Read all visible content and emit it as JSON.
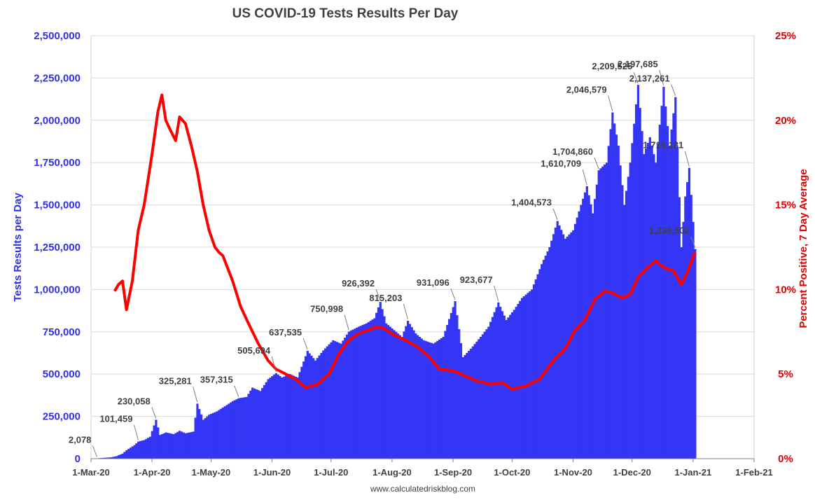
{
  "chart_data": {
    "type": "bar",
    "title": "US COVID-19 Tests Results Per Day",
    "ylabel": "Tests Results per Day",
    "y2label": "Percent Positive, 7 Day Average",
    "credit": "www.calculatedriskblog.com",
    "ylim": [
      0,
      2500000
    ],
    "y2lim": [
      0,
      25
    ],
    "xlim": [
      "2020-03-01",
      "2021-02-01"
    ],
    "grid": true,
    "colors": {
      "bars": "#3535f5",
      "line": "#ff0000",
      "left_axis": "#2f2fe8",
      "right_axis": "#e00000"
    },
    "y_ticks": [
      "0",
      "250,000",
      "500,000",
      "750,000",
      "1,000,000",
      "1,250,000",
      "1,500,000",
      "1,750,000",
      "2,000,000",
      "2,250,000",
      "2,500,000"
    ],
    "y2_ticks": [
      "0%",
      "5%",
      "10%",
      "15%",
      "20%",
      "25%"
    ],
    "x_ticks": [
      {
        "label": "1-Mar-20",
        "date": "2020-03-01"
      },
      {
        "label": "1-Apr-20",
        "date": "2020-04-01"
      },
      {
        "label": "1-May-20",
        "date": "2020-05-01"
      },
      {
        "label": "1-Jun-20",
        "date": "2020-06-01"
      },
      {
        "label": "1-Jul-20",
        "date": "2020-07-01"
      },
      {
        "label": "1-Aug-20",
        "date": "2020-08-01"
      },
      {
        "label": "1-Sep-20",
        "date": "2020-09-01"
      },
      {
        "label": "1-Oct-20",
        "date": "2020-10-01"
      },
      {
        "label": "1-Nov-20",
        "date": "2020-11-01"
      },
      {
        "label": "1-Dec-20",
        "date": "2020-12-01"
      },
      {
        "label": "1-Jan-21",
        "date": "2021-01-01"
      },
      {
        "label": "1-Feb-21",
        "date": "2021-02-01"
      }
    ],
    "series": [
      {
        "kind": "bar",
        "axis": "left",
        "points": [
          [
            "2020-03-04",
            2078
          ],
          [
            "2020-03-11",
            8000
          ],
          [
            "2020-03-14",
            15000
          ],
          [
            "2020-03-17",
            30000
          ],
          [
            "2020-03-19",
            50000
          ],
          [
            "2020-03-21",
            65000
          ],
          [
            "2020-03-23",
            80000
          ],
          [
            "2020-03-25",
            101459
          ],
          [
            "2020-03-28",
            110000
          ],
          [
            "2020-03-31",
            130000
          ],
          [
            "2020-04-03",
            230058
          ],
          [
            "2020-04-05",
            140000
          ],
          [
            "2020-04-08",
            155000
          ],
          [
            "2020-04-12",
            145000
          ],
          [
            "2020-04-15",
            165000
          ],
          [
            "2020-04-18",
            150000
          ],
          [
            "2020-04-22",
            160000
          ],
          [
            "2020-04-24",
            325281
          ],
          [
            "2020-04-27",
            230000
          ],
          [
            "2020-04-30",
            260000
          ],
          [
            "2020-05-04",
            280000
          ],
          [
            "2020-05-08",
            310000
          ],
          [
            "2020-05-12",
            340000
          ],
          [
            "2020-05-15",
            357315
          ],
          [
            "2020-05-19",
            365000
          ],
          [
            "2020-05-22",
            420000
          ],
          [
            "2020-05-26",
            400000
          ],
          [
            "2020-05-30",
            470000
          ],
          [
            "2020-06-03",
            505694
          ],
          [
            "2020-06-06",
            480000
          ],
          [
            "2020-06-10",
            500000
          ],
          [
            "2020-06-14",
            480000
          ],
          [
            "2020-06-19",
            637535
          ],
          [
            "2020-06-23",
            580000
          ],
          [
            "2020-06-27",
            640000
          ],
          [
            "2020-07-02",
            700000
          ],
          [
            "2020-07-06",
            680000
          ],
          [
            "2020-07-10",
            750998
          ],
          [
            "2020-07-15",
            780000
          ],
          [
            "2020-07-19",
            800000
          ],
          [
            "2020-07-23",
            830000
          ],
          [
            "2020-07-26",
            926392
          ],
          [
            "2020-07-29",
            800000
          ],
          [
            "2020-08-02",
            760000
          ],
          [
            "2020-08-06",
            720000
          ],
          [
            "2020-08-09",
            815203
          ],
          [
            "2020-08-13",
            740000
          ],
          [
            "2020-08-17",
            700000
          ],
          [
            "2020-08-22",
            680000
          ],
          [
            "2020-08-27",
            720000
          ],
          [
            "2020-09-02",
            931096
          ],
          [
            "2020-09-06",
            600000
          ],
          [
            "2020-09-10",
            650000
          ],
          [
            "2020-09-15",
            720000
          ],
          [
            "2020-09-19",
            780000
          ],
          [
            "2020-09-24",
            923677
          ],
          [
            "2020-09-28",
            820000
          ],
          [
            "2020-10-02",
            880000
          ],
          [
            "2020-10-06",
            950000
          ],
          [
            "2020-10-11",
            1000000
          ],
          [
            "2020-10-16",
            1150000
          ],
          [
            "2020-10-20",
            1250000
          ],
          [
            "2020-10-24",
            1404573
          ],
          [
            "2020-10-28",
            1300000
          ],
          [
            "2020-11-01",
            1350000
          ],
          [
            "2020-11-05",
            1500000
          ],
          [
            "2020-11-08",
            1610709
          ],
          [
            "2020-11-11",
            1450000
          ],
          [
            "2020-11-14",
            1704860
          ],
          [
            "2020-11-18",
            1750000
          ],
          [
            "2020-11-21",
            2046579
          ],
          [
            "2020-11-24",
            1850000
          ],
          [
            "2020-11-27",
            1500000
          ],
          [
            "2020-11-30",
            1750000
          ],
          [
            "2020-12-04",
            2209525
          ],
          [
            "2020-12-07",
            1800000
          ],
          [
            "2020-12-10",
            1900000
          ],
          [
            "2020-12-13",
            1750000
          ],
          [
            "2020-12-17",
            2197685
          ],
          [
            "2020-12-20",
            1850000
          ],
          [
            "2020-12-23",
            2137261
          ],
          [
            "2020-12-26",
            1250000
          ],
          [
            "2020-12-28",
            1550000
          ],
          [
            "2020-12-30",
            1719181
          ],
          [
            "2021-01-02",
            1239502
          ]
        ]
      },
      {
        "kind": "line",
        "axis": "right",
        "points": [
          [
            "2020-03-13",
            9.9
          ],
          [
            "2020-03-15",
            10.3
          ],
          [
            "2020-03-17",
            10.5
          ],
          [
            "2020-03-19",
            8.8
          ],
          [
            "2020-03-22",
            10.5
          ],
          [
            "2020-03-25",
            13.5
          ],
          [
            "2020-03-28",
            15.0
          ],
          [
            "2020-04-01",
            18.0
          ],
          [
            "2020-04-04",
            20.5
          ],
          [
            "2020-04-06",
            21.5
          ],
          [
            "2020-04-08",
            20.0
          ],
          [
            "2020-04-10",
            19.5
          ],
          [
            "2020-04-13",
            18.8
          ],
          [
            "2020-04-15",
            20.2
          ],
          [
            "2020-04-18",
            19.8
          ],
          [
            "2020-04-21",
            18.5
          ],
          [
            "2020-04-24",
            17.0
          ],
          [
            "2020-04-27",
            15.0
          ],
          [
            "2020-04-30",
            13.5
          ],
          [
            "2020-05-03",
            12.5
          ],
          [
            "2020-05-05",
            12.2
          ],
          [
            "2020-05-07",
            12.0
          ],
          [
            "2020-05-12",
            10.5
          ],
          [
            "2020-05-16",
            9.0
          ],
          [
            "2020-05-20",
            8.0
          ],
          [
            "2020-05-25",
            6.8
          ],
          [
            "2020-05-30",
            5.8
          ],
          [
            "2020-06-03",
            5.3
          ],
          [
            "2020-06-08",
            5.0
          ],
          [
            "2020-06-13",
            4.7
          ],
          [
            "2020-06-18",
            4.2
          ],
          [
            "2020-06-24",
            4.4
          ],
          [
            "2020-06-30",
            5.0
          ],
          [
            "2020-07-05",
            6.2
          ],
          [
            "2020-07-10",
            7.0
          ],
          [
            "2020-07-15",
            7.4
          ],
          [
            "2020-07-20",
            7.6
          ],
          [
            "2020-07-24",
            7.8
          ],
          [
            "2020-07-28",
            7.7
          ],
          [
            "2020-08-02",
            7.3
          ],
          [
            "2020-08-08",
            7.0
          ],
          [
            "2020-08-14",
            6.6
          ],
          [
            "2020-08-20",
            6.0
          ],
          [
            "2020-08-25",
            5.3
          ],
          [
            "2020-09-01",
            5.2
          ],
          [
            "2020-09-07",
            4.9
          ],
          [
            "2020-09-13",
            4.6
          ],
          [
            "2020-09-20",
            4.4
          ],
          [
            "2020-09-26",
            4.5
          ],
          [
            "2020-10-01",
            4.1
          ],
          [
            "2020-10-08",
            4.3
          ],
          [
            "2020-10-15",
            4.7
          ],
          [
            "2020-10-22",
            5.8
          ],
          [
            "2020-10-28",
            6.5
          ],
          [
            "2020-11-02",
            7.6
          ],
          [
            "2020-11-07",
            8.2
          ],
          [
            "2020-11-12",
            9.4
          ],
          [
            "2020-11-17",
            9.9
          ],
          [
            "2020-11-21",
            9.8
          ],
          [
            "2020-11-26",
            9.5
          ],
          [
            "2020-11-30",
            9.7
          ],
          [
            "2020-12-04",
            10.7
          ],
          [
            "2020-12-09",
            11.3
          ],
          [
            "2020-12-13",
            11.7
          ],
          [
            "2020-12-17",
            11.3
          ],
          [
            "2020-12-22",
            11.1
          ],
          [
            "2020-12-26",
            10.3
          ],
          [
            "2020-12-29",
            11.0
          ],
          [
            "2021-01-02",
            12.2
          ]
        ]
      }
    ],
    "annotations": [
      {
        "label": "2,078",
        "date": "2020-03-04",
        "value": 2078
      },
      {
        "label": "101,459",
        "date": "2020-03-25",
        "value": 101459
      },
      {
        "label": "230,058",
        "date": "2020-04-03",
        "value": 230058
      },
      {
        "label": "325,281",
        "date": "2020-04-24",
        "value": 325281
      },
      {
        "label": "357,315",
        "date": "2020-05-15",
        "value": 357315
      },
      {
        "label": "505,694",
        "date": "2020-06-03",
        "value": 505694
      },
      {
        "label": "637,535",
        "date": "2020-06-19",
        "value": 637535
      },
      {
        "label": "750,998",
        "date": "2020-07-10",
        "value": 750998
      },
      {
        "label": "926,392",
        "date": "2020-07-26",
        "value": 926392
      },
      {
        "label": "815,203",
        "date": "2020-08-09",
        "value": 815203
      },
      {
        "label": "931,096",
        "date": "2020-09-02",
        "value": 931096
      },
      {
        "label": "923,677",
        "date": "2020-09-24",
        "value": 923677
      },
      {
        "label": "1,404,573",
        "date": "2020-10-24",
        "value": 1404573
      },
      {
        "label": "1,610,709",
        "date": "2020-11-08",
        "value": 1610709
      },
      {
        "label": "1,704,860",
        "date": "2020-11-14",
        "value": 1704860
      },
      {
        "label": "2,046,579",
        "date": "2020-11-21",
        "value": 2046579
      },
      {
        "label": "2,209,525",
        "date": "2020-12-04",
        "value": 2209525
      },
      {
        "label": "2,197,685",
        "date": "2020-12-17",
        "value": 2197685
      },
      {
        "label": "2,137,261",
        "date": "2020-12-23",
        "value": 2137261
      },
      {
        "label": "1,719,181",
        "date": "2020-12-30",
        "value": 1719181
      },
      {
        "label": "1,239,502",
        "date": "2021-01-02",
        "value": 1239502
      }
    ]
  }
}
